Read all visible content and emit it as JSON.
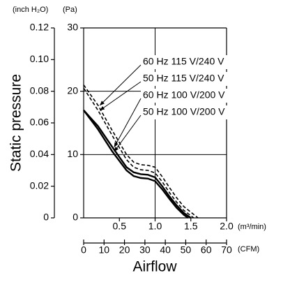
{
  "chart_data": {
    "type": "line",
    "ylabel": "Static pressure",
    "xlabel": "Airflow",
    "yunit": "(Pa)",
    "y2unit": "(inch H₂O)",
    "xunit": "(m³/min)",
    "x2unit": "(CFM)",
    "xlim": [
      0,
      2
    ],
    "xticks": [
      {
        "value": 0.5,
        "label": "0.5"
      },
      {
        "value": 1,
        "label": "1.0"
      },
      {
        "value": 1.5,
        "label": "1.5"
      },
      {
        "value": 2,
        "label": "2.0"
      }
    ],
    "x2lim": [
      0,
      70
    ],
    "x2ticks": [
      0,
      10,
      20,
      30,
      40,
      50,
      60,
      70
    ],
    "ylim": [
      0,
      30
    ],
    "yticks": [
      0,
      10,
      20,
      30
    ],
    "y2lim": [
      0,
      0.12
    ],
    "y2ticks": [
      0,
      0.02,
      0.04,
      0.06,
      0.08,
      {
        "value": 0.1,
        "label": "0.10"
      },
      0.12
    ],
    "xgrid": [
      1
    ],
    "ygrid": [
      10,
      20
    ],
    "series": [
      {
        "name": "60 Hz 115 V/240 V",
        "color": "#000000",
        "dashed": true,
        "x": [
          0,
          0.2,
          0.4,
          0.6,
          0.7,
          0.8,
          0.9,
          1.0,
          1.1,
          1.2,
          1.3,
          1.4,
          1.6
        ],
        "values": [
          21,
          17.8,
          13.8,
          10,
          8.8,
          8.4,
          8.3,
          8,
          6.5,
          4.8,
          3.2,
          1.8,
          0
        ]
      },
      {
        "name": "50 Hz 115 V/240 V",
        "color": "#000000",
        "dashed": true,
        "x": [
          0,
          0.2,
          0.4,
          0.6,
          0.7,
          0.8,
          0.9,
          1.0,
          1.1,
          1.2,
          1.3,
          1.4,
          1.54
        ],
        "values": [
          20.5,
          17,
          13,
          9.2,
          8,
          7.6,
          7.5,
          7.1,
          5.7,
          4,
          2.5,
          1.2,
          0
        ]
      },
      {
        "name": "60 Hz 100 V/200 V",
        "color": "#000000",
        "dashed": false,
        "x": [
          0,
          0.2,
          0.4,
          0.6,
          0.7,
          0.8,
          0.9,
          1.0,
          1.1,
          1.2,
          1.3,
          1.4,
          1.5
        ],
        "values": [
          17,
          14.5,
          11.2,
          8,
          7.2,
          6.9,
          6.8,
          6.4,
          5,
          3.4,
          2,
          0.8,
          0
        ]
      },
      {
        "name": "50 Hz 100 V/200 V",
        "color": "#000000",
        "dashed": false,
        "x": [
          0,
          0.2,
          0.4,
          0.6,
          0.7,
          0.8,
          0.9,
          1.0,
          1.1,
          1.2,
          1.3,
          1.4,
          1.46
        ],
        "values": [
          17,
          14,
          10.5,
          7.5,
          6.6,
          6.3,
          6.2,
          5.8,
          4.5,
          3,
          1.6,
          0.5,
          0
        ]
      }
    ]
  }
}
